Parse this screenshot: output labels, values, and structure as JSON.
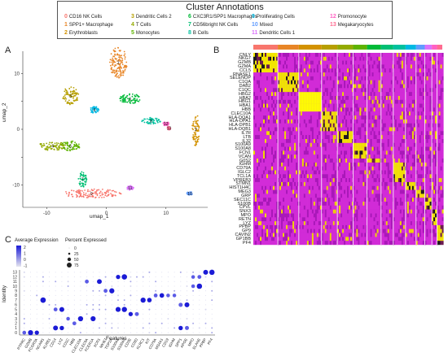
{
  "legend": {
    "title": "Cluster Annotations",
    "items": [
      {
        "id": "0",
        "label": "CD16 NK Cells",
        "color": "#F8766D"
      },
      {
        "id": "1",
        "label": "SPP1+ Macrophage",
        "color": "#E88526"
      },
      {
        "id": "2",
        "label": "Erythroblasts",
        "color": "#D39200"
      },
      {
        "id": "3",
        "label": "Dendritic Cells 2",
        "color": "#B79F00"
      },
      {
        "id": "4",
        "label": "T Cells",
        "color": "#93AA00"
      },
      {
        "id": "5",
        "label": "Monocytes",
        "color": "#5EB300"
      },
      {
        "id": "6",
        "label": "CXC3R1/SPP1 Macrophages",
        "color": "#00BA38"
      },
      {
        "id": "7",
        "label": "CD56bright NK Cells",
        "color": "#00BF74"
      },
      {
        "id": "8",
        "label": "B Cells",
        "color": "#00C19F"
      },
      {
        "id": "9",
        "label": "Proliferating Cells",
        "color": "#00B9E3"
      },
      {
        "id": "10",
        "label": "Mixed",
        "color": "#619CFF"
      },
      {
        "id": "11",
        "label": "Dendritic Cells 1",
        "color": "#DB72FB"
      },
      {
        "id": "12",
        "label": "Promonocyte",
        "color": "#FF61C3"
      },
      {
        "id": "13",
        "label": "Megakaryocytes",
        "color": "#FF6C91"
      }
    ]
  },
  "panels": {
    "a": {
      "letter": "A",
      "xlabel": "umap_1",
      "ylabel": "umap_2"
    },
    "b": {
      "letter": "B"
    },
    "c": {
      "letter": "C",
      "xlabel": "Features",
      "ylabel": "Identity",
      "avg_title": "Average Expression",
      "pct_title": "Percent Expressed",
      "avg_ticks": [
        "2",
        "1",
        "0",
        "-1"
      ],
      "pct_ticks": [
        "0",
        "25",
        "50",
        "75"
      ]
    }
  },
  "chart_data": [
    {
      "type": "scatter",
      "title": "",
      "xlabel": "umap_1",
      "ylabel": "umap_2",
      "x_ticks": [
        -10,
        0,
        10
      ],
      "y_ticks": [
        -10,
        -5,
        0,
        5,
        10
      ],
      "xlim": [
        -14,
        17
      ],
      "ylim": [
        -14,
        14
      ],
      "clusters": [
        {
          "id": "0",
          "x": -2.5,
          "y": -11.5
        },
        {
          "id": "1",
          "x": 2,
          "y": 12
        },
        {
          "id": "2",
          "x": 15,
          "y": 0
        },
        {
          "id": "3",
          "x": -6,
          "y": 6
        },
        {
          "id": "4",
          "x": -9,
          "y": -3
        },
        {
          "id": "5",
          "x": -6,
          "y": -3
        },
        {
          "id": "6",
          "x": 4,
          "y": 5.5
        },
        {
          "id": "7",
          "x": -4,
          "y": -9
        },
        {
          "id": "8",
          "x": 7.5,
          "y": 1.5
        },
        {
          "id": "9",
          "x": -2,
          "y": 3.5
        },
        {
          "id": "10",
          "x": 14,
          "y": -11.5
        },
        {
          "id": "11",
          "x": 4,
          "y": -10.5
        },
        {
          "id": "12",
          "x": 10,
          "y": 1
        },
        {
          "id": "13",
          "x": 10.5,
          "y": 0.2
        }
      ]
    },
    {
      "type": "heatmap",
      "genes": [
        "CNLY",
        "NKG7",
        "GZMB",
        "GZMA",
        "CCL5",
        "RNASE1",
        "SELENOP",
        "C1QA",
        "DAB2",
        "C1QC",
        "HBG2",
        "HBA2",
        "HBG1",
        "HBA1",
        "HBB",
        "CLEC10A",
        "HLA-DQA1",
        "HLA-DPA1",
        "HLA-DPB1",
        "HLA-DQB1",
        "IL7R",
        "LTB",
        "IL32",
        "S100A9",
        "S100A8",
        "FCN1",
        "VCAN",
        "G0S2",
        "IGHM",
        "CD79A",
        "IGLC2",
        "TCL1A",
        "VPREB3",
        "STMN1",
        "HIST1H4C",
        "MEG3",
        "GRP",
        "SEC11C",
        "S100B",
        "CPVL",
        "SNX3",
        "MPO",
        "RETN",
        "LYZ",
        "PPBP",
        "GP9",
        "CAVIN2",
        "GP1BB",
        "PF4"
      ],
      "groups": [
        "0",
        "1",
        "2",
        "3",
        "4",
        "5",
        "6",
        "7",
        "8",
        "9",
        "10",
        "11",
        "12",
        "13"
      ]
    },
    {
      "type": "scatter",
      "subtype": "dotplot",
      "xlabel": "Features",
      "ylabel": "Identity",
      "identities": [
        "0",
        "1",
        "2",
        "3",
        "4",
        "5",
        "6",
        "7",
        "8",
        "9",
        "10",
        "11",
        "12",
        "13"
      ],
      "features": [
        "PTPRC",
        "GZMB",
        "FCGR3A",
        "NCAM1",
        "KLRB1",
        "CD14",
        "LYZ",
        "CD1C",
        "HBB",
        "CLEC10A",
        "CLEC9A",
        "FCER1A",
        "XCR1",
        "MKI67",
        "TOP2A",
        "S100A8",
        "S100A9",
        "CD3E",
        "CD3D",
        "KLRC1",
        "KIT",
        "CD79A",
        "MS4A1",
        "CD19",
        "IGHM",
        "SPP1",
        "APOE",
        "MPO",
        "ELANE",
        "PPBP",
        "PF4"
      ]
    }
  ]
}
